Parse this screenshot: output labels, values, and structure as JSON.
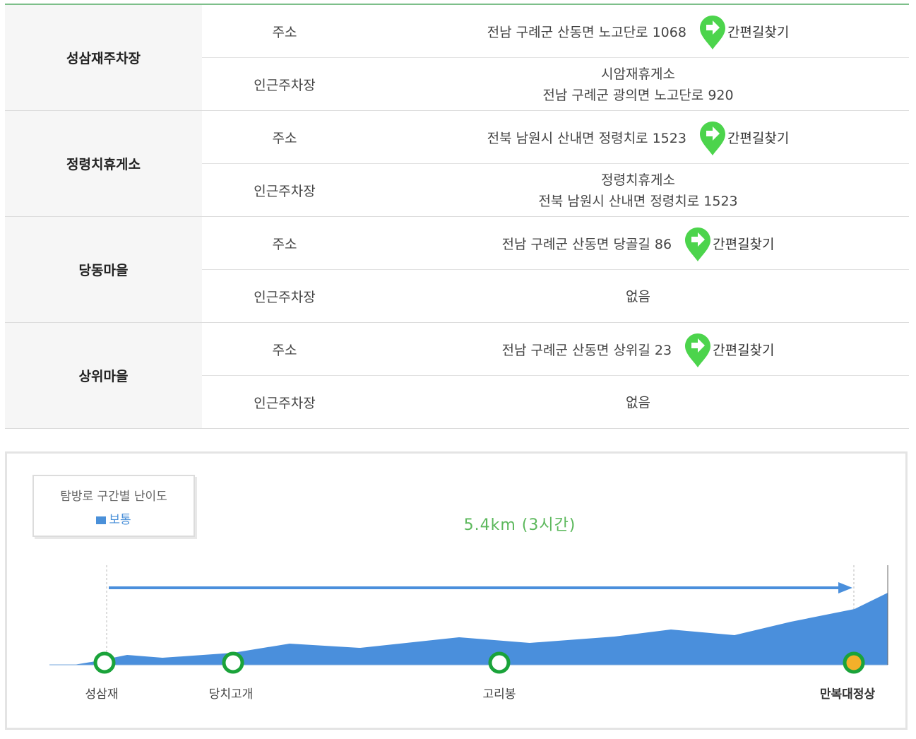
{
  "sections": [
    {
      "name": "성삼재주차장",
      "address_label": "주소",
      "address": "전남 구례군 산동면 노고단로 1068",
      "parking_label": "인근주차장",
      "parking_lines": [
        "시암재휴게소",
        "전남 구례군 광의면 노고단로 920"
      ]
    },
    {
      "name": "정령치휴게소",
      "address_label": "주소",
      "address": "전북 남원시 산내면 정령치로 1523",
      "parking_label": "인근주차장",
      "parking_lines": [
        "정령치휴게소",
        "전북 남원시 산내면 정령치로 1523"
      ]
    },
    {
      "name": "당동마을",
      "address_label": "주소",
      "address": "전남 구례군 산동면 당골길 86",
      "parking_label": "인근주차장",
      "parking_lines": [
        "없음"
      ]
    },
    {
      "name": "상위마을",
      "address_label": "주소",
      "address": "전남 구례군 산동면 상위길 23",
      "parking_label": "인근주차장",
      "parking_lines": [
        "없음"
      ]
    }
  ],
  "nav_button_label": "간편길찾기",
  "course": {
    "legend_title": "탐방로 구간별 난이도",
    "legend_item": "보통",
    "distance": "5.4km (3시간)",
    "waypoints": [
      {
        "name": "성삼재",
        "final": false
      },
      {
        "name": "당치고개",
        "final": false
      },
      {
        "name": "고리봉",
        "final": false
      },
      {
        "name": "만복대정상",
        "final": true
      }
    ]
  },
  "colors": {
    "accent_green": "#4cd44c",
    "profile_blue": "#4a8fdc",
    "marker_green": "#1aa33a",
    "summit_orange": "#f4b02a",
    "distance_green": "#5cb85c"
  }
}
